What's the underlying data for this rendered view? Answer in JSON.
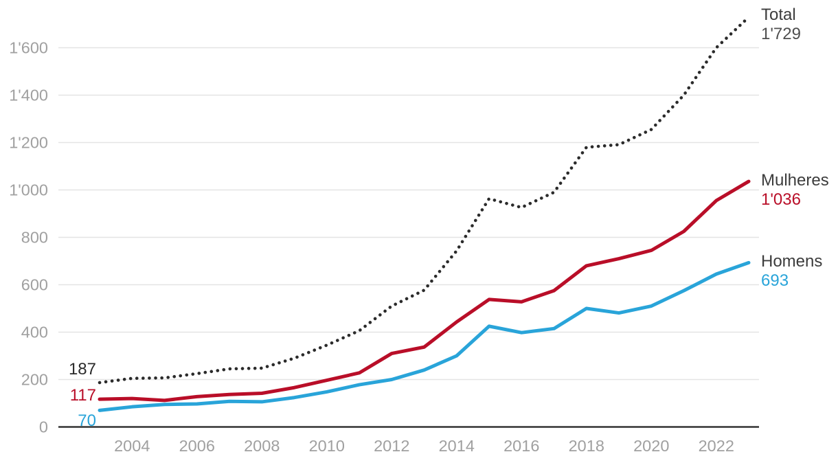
{
  "styles": {
    "background": "#ffffff",
    "grid_color": "#e4e4e4",
    "axis_color": "#333333",
    "tick_label_color": "#a0a0a0",
    "series_name_color": "#3c3c3c"
  },
  "chart_data": {
    "type": "line",
    "title": "",
    "xlabel": "",
    "ylabel": "",
    "grid": "horizontal",
    "legend_position": "right-end-labels",
    "xlim": [
      2003,
      2023
    ],
    "ylim": [
      0,
      1760
    ],
    "x": [
      2003,
      2004,
      2005,
      2006,
      2007,
      2008,
      2009,
      2010,
      2011,
      2012,
      2013,
      2014,
      2015,
      2016,
      2017,
      2018,
      2019,
      2020,
      2021,
      2022,
      2023
    ],
    "x_tick_years": [
      2004,
      2006,
      2008,
      2010,
      2012,
      2014,
      2016,
      2018,
      2020,
      2022
    ],
    "y_ticks": [
      {
        "value": 0,
        "label": "0"
      },
      {
        "value": 200,
        "label": "200"
      },
      {
        "value": 400,
        "label": "400"
      },
      {
        "value": 600,
        "label": "600"
      },
      {
        "value": 800,
        "label": "800"
      },
      {
        "value": 1000,
        "label": "1'000"
      },
      {
        "value": 1200,
        "label": "1'200"
      },
      {
        "value": 1400,
        "label": "1'400"
      },
      {
        "value": 1600,
        "label": "1'600"
      }
    ],
    "series": [
      {
        "name": "Total",
        "style": "dotted",
        "color": "#2b2b2b",
        "start_label": "187",
        "start_label_color": "#2b2b2b",
        "end_label": "1'729",
        "end_label_color": "#4f4f4f",
        "values": [
          187,
          205,
          207,
          225,
          245,
          248,
          290,
          345,
          406,
          510,
          577,
          743,
          963,
          926,
          990,
          1180,
          1191,
          1255,
          1400,
          1600,
          1729
        ]
      },
      {
        "name": "Mulheres",
        "style": "solid",
        "color": "#b90e28",
        "start_label": "117",
        "start_label_color": "#b90e28",
        "end_label": "1'036",
        "end_label_color": "#b90e28",
        "values": [
          117,
          120,
          112,
          128,
          137,
          142,
          166,
          197,
          228,
          310,
          337,
          443,
          538,
          528,
          575,
          680,
          710,
          745,
          825,
          955,
          1036
        ]
      },
      {
        "name": "Homens",
        "style": "solid",
        "color": "#29a4d9",
        "start_label": "70",
        "start_label_color": "#29a4d9",
        "end_label": "693",
        "end_label_color": "#29a4d9",
        "values": [
          70,
          85,
          95,
          97,
          108,
          106,
          124,
          148,
          178,
          200,
          240,
          300,
          425,
          398,
          415,
          500,
          481,
          510,
          575,
          645,
          693
        ]
      }
    ]
  }
}
